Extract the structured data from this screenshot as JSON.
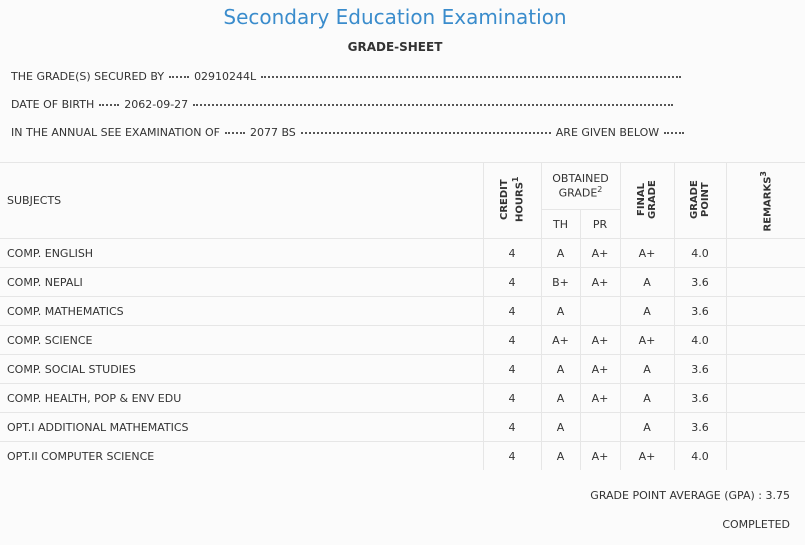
{
  "header": {
    "title": "Secondary Education Examination",
    "subtitle": "GRADE-SHEET"
  },
  "info": [
    {
      "label": "THE GRADE(S) SECURED BY",
      "value": "02910244L"
    },
    {
      "label": "DATE OF BIRTH",
      "value": "2062-09-27"
    },
    {
      "label": "IN THE ANNUAL SEE EXAMINATION OF",
      "value": "2077 BS",
      "suffix": "ARE GIVEN BELOW"
    }
  ],
  "table": {
    "headers": {
      "subjects": "SUBJECTS",
      "credit": "CREDIT HOURS",
      "credit_note": "1",
      "obtained": "OBTAINED GRADE",
      "obtained_note": "2",
      "th": "TH",
      "pr": "PR",
      "final": "FINAL GRADE",
      "point": "GRADE POINT",
      "remarks": "REMARKS",
      "remarks_note": "3"
    },
    "rows": [
      [
        "COMP. ENGLISH",
        4,
        "A",
        "A+",
        "A+",
        "4.0"
      ],
      [
        "COMP. NEPALI",
        4,
        "B+",
        "A+",
        "A",
        "3.6"
      ],
      [
        "COMP. MATHEMATICS",
        4,
        "A",
        null,
        "A",
        "3.6"
      ],
      [
        "COMP. SCIENCE",
        4,
        "A+",
        "A+",
        "A+",
        "4.0"
      ],
      [
        "COMP. SOCIAL STUDIES",
        4,
        "A",
        "A+",
        "A",
        "3.6"
      ],
      [
        "COMP. HEALTH, POP & ENV EDU",
        4,
        "A",
        "A+",
        "A",
        "3.6"
      ],
      [
        "OPT.I ADDITIONAL MATHEMATICS",
        4,
        "A",
        null,
        "A",
        "3.6"
      ],
      [
        "OPT.II COMPUTER SCIENCE",
        4,
        "A",
        "A+",
        "A+",
        "4.0"
      ]
    ]
  },
  "footer": {
    "gpa_label": "GRADE POINT AVERAGE (GPA) :",
    "gpa": "3.75",
    "status": "COMPLETED"
  }
}
